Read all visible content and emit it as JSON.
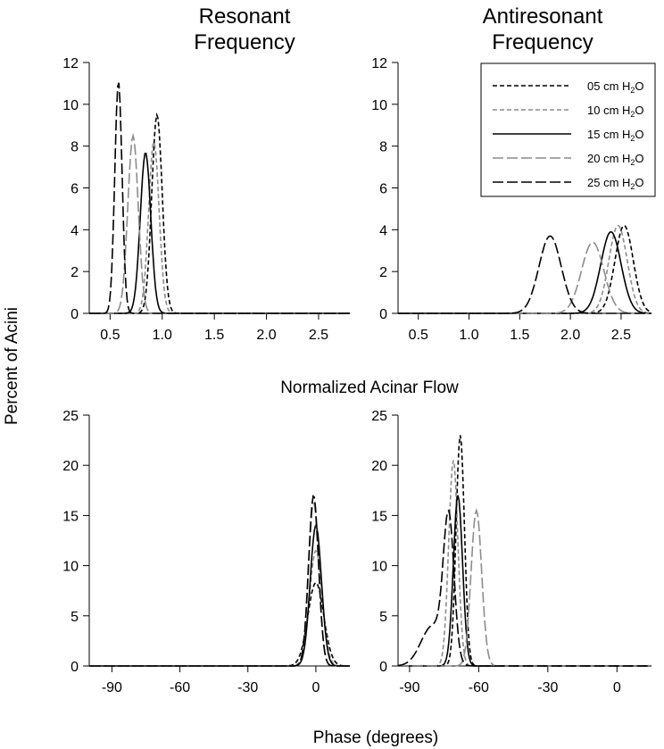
{
  "figure": {
    "col_titles": [
      [
        "Resonant",
        "Frequency"
      ],
      [
        "Antiresonant",
        "Frequency"
      ]
    ],
    "row_title": "Normalized Acinar Flow",
    "ylabel": "Percent of Acini",
    "xlabel": "Phase (degrees)"
  },
  "legend": [
    {
      "name": "05 cm H",
      "sub": "2",
      "tail": "O",
      "color": "#000000",
      "dash": "5,3"
    },
    {
      "name": "10 cm H",
      "sub": "2",
      "tail": "O",
      "color": "#8c8c8c",
      "dash": "5,3"
    },
    {
      "name": "15 cm H",
      "sub": "2",
      "tail": "O",
      "color": "#000000",
      "dash": ""
    },
    {
      "name": "20 cm H",
      "sub": "2",
      "tail": "O",
      "color": "#8c8c8c",
      "dash": "12,4"
    },
    {
      "name": "25 cm H",
      "sub": "2",
      "tail": "O",
      "color": "#000000",
      "dash": "12,4"
    }
  ],
  "chart_data": [
    {
      "type": "line",
      "panel": "top-left",
      "xlim": [
        0.3,
        2.8
      ],
      "ylim": [
        0,
        12
      ],
      "xticks": [
        "0.5",
        "1.0",
        "1.5",
        "2.0",
        "2.5"
      ],
      "yticks": [
        "0",
        "2",
        "4",
        "6",
        "8",
        "10",
        "12"
      ],
      "series": [
        {
          "name": "05 cm H2O",
          "peaks": [
            [
              0.95,
              9.5,
              0.05
            ]
          ]
        },
        {
          "name": "10 cm H2O",
          "peaks": [
            [
              0.92,
              8.2,
              0.05
            ]
          ]
        },
        {
          "name": "15 cm H2O",
          "peaks": [
            [
              0.84,
              7.7,
              0.05
            ]
          ]
        },
        {
          "name": "20 cm H2O",
          "peaks": [
            [
              0.72,
              8.5,
              0.05
            ]
          ]
        },
        {
          "name": "25 cm H2O",
          "peaks": [
            [
              0.58,
              11.1,
              0.035
            ]
          ]
        }
      ]
    },
    {
      "type": "line",
      "panel": "top-right",
      "xlim": [
        0.3,
        2.8
      ],
      "ylim": [
        0,
        12
      ],
      "xticks": [
        "0.5",
        "1.0",
        "1.5",
        "2.0",
        "2.5"
      ],
      "yticks": [
        "0",
        "2",
        "4",
        "6",
        "8",
        "10",
        "12"
      ],
      "series": [
        {
          "name": "05 cm H2O",
          "peaks": [
            [
              2.53,
              4.2,
              0.09
            ]
          ]
        },
        {
          "name": "10 cm H2O",
          "peaks": [
            [
              2.47,
              4.2,
              0.09
            ]
          ]
        },
        {
          "name": "15 cm H2O",
          "peaks": [
            [
              2.4,
              3.9,
              0.1
            ]
          ]
        },
        {
          "name": "20 cm H2O",
          "peaks": [
            [
              2.22,
              3.4,
              0.11
            ]
          ]
        },
        {
          "name": "25 cm H2O",
          "peaks": [
            [
              1.8,
              3.7,
              0.11
            ]
          ]
        }
      ]
    },
    {
      "type": "line",
      "panel": "bottom-left",
      "xlim": [
        -100,
        15
      ],
      "ylim": [
        0,
        25
      ],
      "xticks": [
        "-90",
        "-60",
        "-30",
        "0"
      ],
      "yticks": [
        "0",
        "5",
        "10",
        "15",
        "20",
        "25"
      ],
      "series": [
        {
          "name": "05 cm H2O",
          "peaks": [
            [
              0,
              8.3,
              3.5
            ]
          ]
        },
        {
          "name": "10 cm H2O",
          "peaks": [
            [
              0,
              11.5,
              2.8
            ]
          ]
        },
        {
          "name": "15 cm H2O",
          "peaks": [
            [
              0,
              14.0,
              2.5
            ]
          ]
        },
        {
          "name": "20 cm H2O",
          "peaks": [
            [
              -1,
              16.3,
              2.2
            ]
          ]
        },
        {
          "name": "25 cm H2O",
          "peaks": [
            [
              -1,
              17.0,
              2.2
            ]
          ]
        }
      ]
    },
    {
      "type": "line",
      "panel": "bottom-right",
      "xlim": [
        -95,
        15
      ],
      "ylim": [
        0,
        25
      ],
      "xticks": [
        "-90",
        "-60",
        "-30",
        "0"
      ],
      "yticks": [
        "0",
        "5",
        "10",
        "15",
        "20",
        "25"
      ],
      "series": [
        {
          "name": "05 cm H2O",
          "peaks": [
            [
              -68,
              23,
              1.8
            ]
          ]
        },
        {
          "name": "10 cm H2O",
          "peaks": [
            [
              -71,
              20.5,
              2.0
            ]
          ]
        },
        {
          "name": "15 cm H2O",
          "peaks": [
            [
              -69,
              17.0,
              2.0
            ]
          ]
        },
        {
          "name": "20 cm H2O",
          "peaks": [
            [
              -61,
              15.5,
              2.3
            ]
          ]
        },
        {
          "name": "25 cm H2O",
          "peaks": [
            [
              -73,
              14.0,
              2.3
            ],
            [
              -80,
              4.0,
              5.0
            ]
          ]
        }
      ]
    }
  ]
}
